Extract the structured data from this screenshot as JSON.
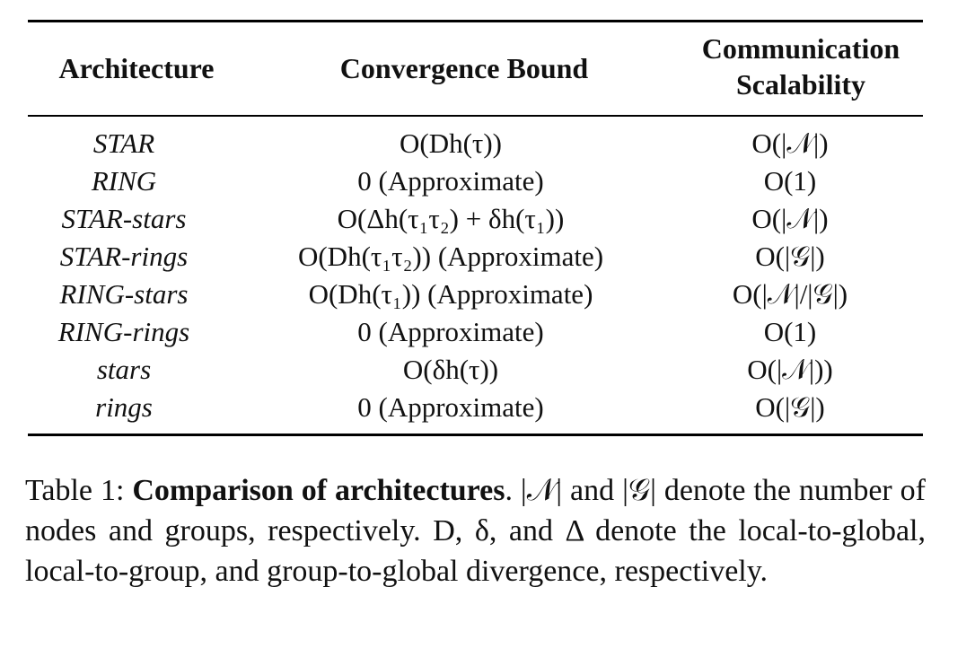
{
  "table": {
    "headers": {
      "architecture": "Architecture",
      "convergence": "Convergence Bound",
      "communication": "Communication Scalability"
    },
    "rows": [
      {
        "architecture": "STAR",
        "convergence": "O(Dh(τ))",
        "communication": "O(|𝒩|)"
      },
      {
        "architecture": "RING",
        "convergence": "0 (Approximate)",
        "communication": "O(1)"
      },
      {
        "architecture": "STAR-stars",
        "convergence": "O(Δh(τ₁τ₂) + δh(τ₁))",
        "communication": "O(|𝒩|)"
      },
      {
        "architecture": "STAR-rings",
        "convergence": "O(Dh(τ₁τ₂)) (Approximate)",
        "communication": "O(|𝒢|)"
      },
      {
        "architecture": "RING-stars",
        "convergence": "O(Dh(τ₁)) (Approximate)",
        "communication": "O(|𝒩|/|𝒢|)"
      },
      {
        "architecture": "RING-rings",
        "convergence": "0 (Approximate)",
        "communication": "O(1)"
      },
      {
        "architecture": "stars",
        "convergence": "O(δh(τ))",
        "communication": "O(|𝒩|))"
      },
      {
        "architecture": "rings",
        "convergence": "0 (Approximate)",
        "communication": "O(|𝒢|)"
      }
    ]
  },
  "caption": {
    "label": "Table 1: ",
    "bold_title": "Comparison of architectures",
    "body": ". |𝒩| and |𝒢| denote the number of nodes and groups, respectively. D, δ, and Δ denote the local-to-global, local-to-group, and group-to-global divergence, respectively."
  }
}
